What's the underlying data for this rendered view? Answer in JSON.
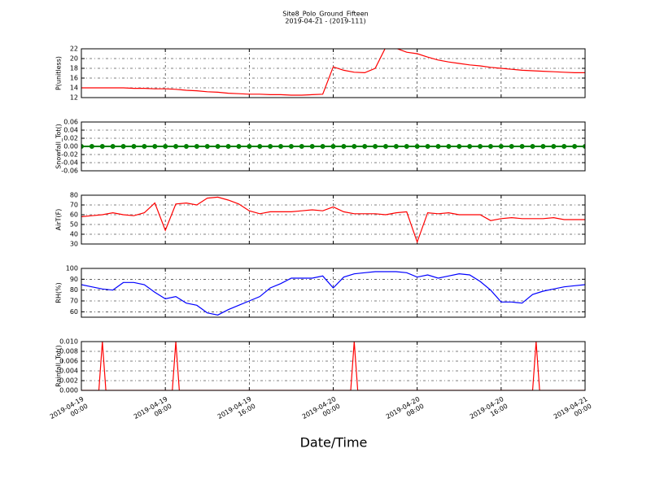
{
  "chart_data": [
    {
      "type": "line",
      "title": "Site8_Polo_Ground_Fifteen",
      "subtitle": "2019-04-21 - (2019-111)",
      "ylabel": "P(unitless)",
      "color": "#ff0000",
      "grid": true,
      "ylim": [
        12,
        22
      ],
      "yticks": [
        12,
        14,
        16,
        18,
        20,
        22
      ],
      "x": [
        "2019-04-19 00:00",
        "2019-04-19 01:00",
        "2019-04-19 02:00",
        "2019-04-19 03:00",
        "2019-04-19 04:00",
        "2019-04-19 05:00",
        "2019-04-19 06:00",
        "2019-04-19 07:00",
        "2019-04-19 08:00",
        "2019-04-19 09:00",
        "2019-04-19 10:00",
        "2019-04-19 11:00",
        "2019-04-19 12:00",
        "2019-04-19 13:00",
        "2019-04-19 14:00",
        "2019-04-19 15:00",
        "2019-04-19 16:00",
        "2019-04-19 17:00",
        "2019-04-19 18:00",
        "2019-04-19 19:00",
        "2019-04-19 20:00",
        "2019-04-19 21:00",
        "2019-04-19 22:00",
        "2019-04-19 23:00",
        "2019-04-20 00:00",
        "2019-04-20 01:00",
        "2019-04-20 02:00",
        "2019-04-20 03:00",
        "2019-04-20 04:00",
        "2019-04-20 05:00",
        "2019-04-20 06:00",
        "2019-04-20 07:00",
        "2019-04-20 08:00",
        "2019-04-20 09:00",
        "2019-04-20 10:00",
        "2019-04-20 11:00",
        "2019-04-20 12:00",
        "2019-04-20 13:00",
        "2019-04-20 14:00",
        "2019-04-20 15:00",
        "2019-04-20 16:00",
        "2019-04-20 17:00",
        "2019-04-20 18:00",
        "2019-04-20 19:00",
        "2019-04-20 20:00",
        "2019-04-20 21:00",
        "2019-04-20 22:00",
        "2019-04-20 23:00",
        "2019-04-21 00:00"
      ],
      "values": [
        14.0,
        14.0,
        14.0,
        14.0,
        14.0,
        13.9,
        13.9,
        13.8,
        13.8,
        13.7,
        13.5,
        13.4,
        13.2,
        13.1,
        12.9,
        12.8,
        12.7,
        12.7,
        12.6,
        12.6,
        12.5,
        12.5,
        12.6,
        12.7,
        18.3,
        17.6,
        17.2,
        17.1,
        18.0,
        22.3,
        22.1,
        21.3,
        21.0,
        20.3,
        19.7,
        19.3,
        19.0,
        18.7,
        18.5,
        18.2,
        18.0,
        17.8,
        17.6,
        17.5,
        17.4,
        17.3,
        17.2,
        17.1,
        17.1
      ]
    },
    {
      "type": "line",
      "ylabel": "Snowfall_Tot()",
      "color": "#008000",
      "markers": true,
      "grid": true,
      "ylim": [
        -0.06,
        0.06
      ],
      "yticks": [
        -0.06,
        -0.04,
        -0.02,
        {
          "value": 0,
          "label": "0.00"
        },
        0.02,
        0.04,
        0.06
      ],
      "x": [
        "2019-04-19 00:00",
        "2019-04-19 01:00",
        "2019-04-19 02:00",
        "2019-04-19 03:00",
        "2019-04-19 04:00",
        "2019-04-19 05:00",
        "2019-04-19 06:00",
        "2019-04-19 07:00",
        "2019-04-19 08:00",
        "2019-04-19 09:00",
        "2019-04-19 10:00",
        "2019-04-19 11:00",
        "2019-04-19 12:00",
        "2019-04-19 13:00",
        "2019-04-19 14:00",
        "2019-04-19 15:00",
        "2019-04-19 16:00",
        "2019-04-19 17:00",
        "2019-04-19 18:00",
        "2019-04-19 19:00",
        "2019-04-19 20:00",
        "2019-04-19 21:00",
        "2019-04-19 22:00",
        "2019-04-19 23:00",
        "2019-04-20 00:00",
        "2019-04-20 01:00",
        "2019-04-20 02:00",
        "2019-04-20 03:00",
        "2019-04-20 04:00",
        "2019-04-20 05:00",
        "2019-04-20 06:00",
        "2019-04-20 07:00",
        "2019-04-20 08:00",
        "2019-04-20 09:00",
        "2019-04-20 10:00",
        "2019-04-20 11:00",
        "2019-04-20 12:00",
        "2019-04-20 13:00",
        "2019-04-20 14:00",
        "2019-04-20 15:00",
        "2019-04-20 16:00",
        "2019-04-20 17:00",
        "2019-04-20 18:00",
        "2019-04-20 19:00",
        "2019-04-20 20:00",
        "2019-04-20 21:00",
        "2019-04-20 22:00",
        "2019-04-20 23:00",
        "2019-04-21 00:00"
      ],
      "values": [
        0,
        0,
        0,
        0,
        0,
        0,
        0,
        0,
        0,
        0,
        0,
        0,
        0,
        0,
        0,
        0,
        0,
        0,
        0,
        0,
        0,
        0,
        0,
        0,
        0,
        0,
        0,
        0,
        0,
        0,
        0,
        0,
        0,
        0,
        0,
        0,
        0,
        0,
        0,
        0,
        0,
        0,
        0,
        0,
        0,
        0,
        0,
        0,
        0
      ]
    },
    {
      "type": "line",
      "ylabel": "AirT(F)",
      "color": "#ff0000",
      "grid": true,
      "ylim": [
        30,
        80
      ],
      "yticks": [
        30,
        40,
        50,
        60,
        70,
        80
      ],
      "x": [
        "2019-04-19 00:00",
        "2019-04-19 01:00",
        "2019-04-19 02:00",
        "2019-04-19 03:00",
        "2019-04-19 04:00",
        "2019-04-19 05:00",
        "2019-04-19 06:00",
        "2019-04-19 07:00",
        "2019-04-19 08:00",
        "2019-04-19 09:00",
        "2019-04-19 10:00",
        "2019-04-19 11:00",
        "2019-04-19 12:00",
        "2019-04-19 13:00",
        "2019-04-19 14:00",
        "2019-04-19 15:00",
        "2019-04-19 16:00",
        "2019-04-19 17:00",
        "2019-04-19 18:00",
        "2019-04-19 19:00",
        "2019-04-19 20:00",
        "2019-04-19 21:00",
        "2019-04-19 22:00",
        "2019-04-19 23:00",
        "2019-04-20 00:00",
        "2019-04-20 01:00",
        "2019-04-20 02:00",
        "2019-04-20 03:00",
        "2019-04-20 04:00",
        "2019-04-20 05:00",
        "2019-04-20 06:00",
        "2019-04-20 07:00",
        "2019-04-20 08:00",
        "2019-04-20 09:00",
        "2019-04-20 10:00",
        "2019-04-20 11:00",
        "2019-04-20 12:00",
        "2019-04-20 13:00",
        "2019-04-20 14:00",
        "2019-04-20 15:00",
        "2019-04-20 16:00",
        "2019-04-20 17:00",
        "2019-04-20 18:00",
        "2019-04-20 19:00",
        "2019-04-20 20:00",
        "2019-04-20 21:00",
        "2019-04-20 22:00",
        "2019-04-20 23:00",
        "2019-04-21 00:00"
      ],
      "values": [
        58,
        59,
        60,
        62,
        60,
        59,
        62,
        72,
        44,
        71,
        72,
        70,
        77,
        78,
        75,
        71,
        64,
        61,
        63,
        63,
        63,
        64,
        65,
        64,
        68,
        63,
        61,
        61,
        61,
        60,
        62,
        63,
        32,
        62,
        61,
        62,
        60,
        60,
        60,
        54,
        56,
        57,
        56,
        56,
        56,
        57,
        55,
        55,
        55
      ]
    },
    {
      "type": "line",
      "ylabel": "RH(%)",
      "color": "#0000ff",
      "grid": true,
      "ylim": [
        55,
        100
      ],
      "yticks": [
        60,
        70,
        80,
        90,
        100
      ],
      "x": [
        "2019-04-19 00:00",
        "2019-04-19 01:00",
        "2019-04-19 02:00",
        "2019-04-19 03:00",
        "2019-04-19 04:00",
        "2019-04-19 05:00",
        "2019-04-19 06:00",
        "2019-04-19 07:00",
        "2019-04-19 08:00",
        "2019-04-19 09:00",
        "2019-04-19 10:00",
        "2019-04-19 11:00",
        "2019-04-19 12:00",
        "2019-04-19 13:00",
        "2019-04-19 14:00",
        "2019-04-19 15:00",
        "2019-04-19 16:00",
        "2019-04-19 17:00",
        "2019-04-19 18:00",
        "2019-04-19 19:00",
        "2019-04-19 20:00",
        "2019-04-19 21:00",
        "2019-04-19 22:00",
        "2019-04-19 23:00",
        "2019-04-20 00:00",
        "2019-04-20 01:00",
        "2019-04-20 02:00",
        "2019-04-20 03:00",
        "2019-04-20 04:00",
        "2019-04-20 05:00",
        "2019-04-20 06:00",
        "2019-04-20 07:00",
        "2019-04-20 08:00",
        "2019-04-20 09:00",
        "2019-04-20 10:00",
        "2019-04-20 11:00",
        "2019-04-20 12:00",
        "2019-04-20 13:00",
        "2019-04-20 14:00",
        "2019-04-20 15:00",
        "2019-04-20 16:00",
        "2019-04-20 17:00",
        "2019-04-20 18:00",
        "2019-04-20 19:00",
        "2019-04-20 20:00",
        "2019-04-20 21:00",
        "2019-04-20 22:00",
        "2019-04-20 23:00",
        "2019-04-21 00:00"
      ],
      "values": [
        85,
        83,
        81,
        80,
        87,
        87,
        85,
        78,
        72,
        74,
        68,
        66,
        59,
        57,
        62,
        66,
        70,
        74,
        82,
        86,
        91,
        91,
        91,
        93,
        82,
        92,
        95,
        96,
        97,
        97,
        97,
        96,
        92,
        94,
        91,
        93,
        95,
        94,
        88,
        80,
        69,
        69,
        68,
        76,
        79,
        81,
        83,
        84,
        85
      ]
    },
    {
      "type": "line",
      "ylabel": "Rainfall_Tot()",
      "xlabel": "Date/Time",
      "color": "#ff0000",
      "grid": true,
      "ylim": [
        0,
        0.01
      ],
      "yticks": [
        {
          "value": 0,
          "label": "0.000"
        },
        {
          "value": 0.002,
          "label": "0.002"
        },
        {
          "value": 0.004,
          "label": "0.004"
        },
        {
          "value": 0.006,
          "label": "0.006"
        },
        {
          "value": 0.008,
          "label": "0.008"
        },
        {
          "value": 0.01,
          "label": "0.010"
        }
      ],
      "xlim": [
        "2019-04-19 00:00",
        "2019-04-21 00:00"
      ],
      "xticks": [
        {
          "value": "2019-04-19 00:00",
          "label": "2019-04-19\n00:00"
        },
        {
          "value": "2019-04-19 08:00",
          "label": "2019-04-19\n08:00"
        },
        {
          "value": "2019-04-19 16:00",
          "label": "2019-04-19\n16:00"
        },
        {
          "value": "2019-04-20 00:00",
          "label": "2019-04-20\n00:00"
        },
        {
          "value": "2019-04-20 08:00",
          "label": "2019-04-20\n08:00"
        },
        {
          "value": "2019-04-20 16:00",
          "label": "2019-04-20\n16:00"
        },
        {
          "value": "2019-04-21 00:00",
          "label": "2019-04-21\n00:00"
        }
      ],
      "x": [
        "2019-04-19 00:00",
        "2019-04-19 01:40",
        "2019-04-19 02:00",
        "2019-04-19 02:20",
        "2019-04-19 08:40",
        "2019-04-19 09:00",
        "2019-04-19 09:20",
        "2019-04-20 01:40",
        "2019-04-20 02:00",
        "2019-04-20 02:20",
        "2019-04-20 19:00",
        "2019-04-20 19:20",
        "2019-04-20 19:40",
        "2019-04-21 00:00"
      ],
      "values": [
        0,
        0,
        0.01,
        0,
        0,
        0.01,
        0,
        0,
        0.01,
        0,
        0,
        0.01,
        0,
        0
      ]
    }
  ]
}
